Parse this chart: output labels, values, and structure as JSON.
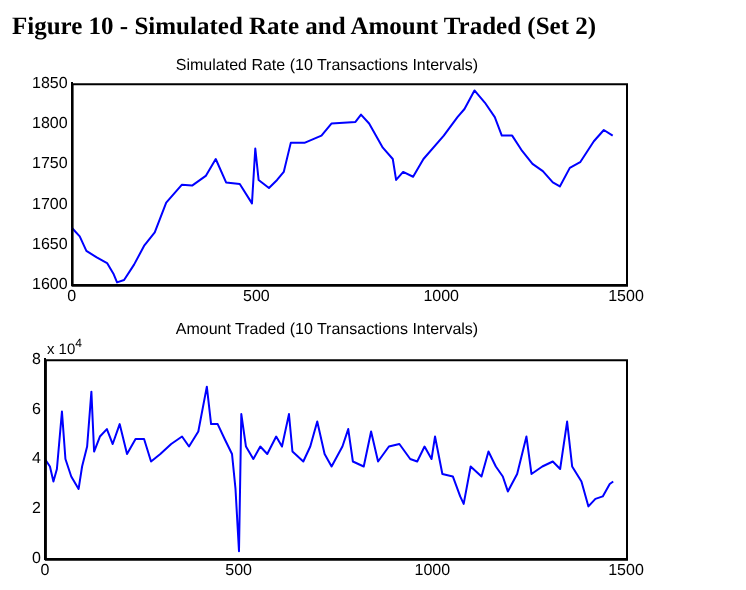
{
  "chart_data": [
    {
      "type": "line",
      "title": "Figure 10 - Simulated Rate and Amount Traded (Set 2)",
      "subtitle": "Simulated Rate (10 Transactions Intervals)",
      "x": [
        0,
        22,
        40,
        68,
        96,
        114,
        123,
        142,
        169,
        197,
        225,
        256,
        298,
        326,
        363,
        390,
        418,
        455,
        488,
        497,
        506,
        534,
        556,
        574,
        593,
        630,
        676,
        703,
        768,
        783,
        805,
        842,
        869,
        878,
        897,
        924,
        952,
        1007,
        1044,
        1063,
        1090,
        1118,
        1145,
        1164,
        1192,
        1219,
        1247,
        1275,
        1302,
        1321,
        1348,
        1376,
        1413,
        1440,
        1464
      ],
      "series": [
        {
          "color": "#0000ff",
          "values": [
            1671,
            1660,
            1642,
            1634,
            1627,
            1613,
            1603,
            1606,
            1625,
            1649,
            1665,
            1702,
            1724,
            1723,
            1735,
            1756,
            1727,
            1725,
            1701,
            1769,
            1730,
            1720,
            1730,
            1740,
            1776,
            1776,
            1785,
            1800,
            1802,
            1811,
            1800,
            1770,
            1756,
            1730,
            1740,
            1734,
            1756,
            1785,
            1808,
            1818,
            1841,
            1826,
            1808,
            1785,
            1785,
            1766,
            1750,
            1741,
            1727,
            1722,
            1745,
            1752,
            1778,
            1792,
            1785
          ]
        }
      ],
      "xlim": [
        0,
        1500
      ],
      "xticks": [
        0,
        500,
        1000,
        1500
      ],
      "ylim": [
        1600,
        1850
      ],
      "yticks": [
        1600,
        1650,
        1700,
        1750,
        1800,
        1850
      ],
      "grid": false,
      "legend": false,
      "marker": "none",
      "line_style": "solid"
    },
    {
      "type": "line",
      "title": "Amount Traded (10 Transactions Intervals)",
      "annotations": [
        "x 10$^{4}$"
      ],
      "x": [
        0,
        13,
        22,
        31,
        44,
        53,
        68,
        87,
        96,
        109,
        120,
        127,
        142,
        160,
        175,
        193,
        212,
        234,
        256,
        274,
        298,
        326,
        354,
        372,
        396,
        418,
        429,
        446,
        464,
        483,
        492,
        501,
        507,
        519,
        538,
        556,
        574,
        597,
        612,
        630,
        639,
        667,
        685,
        703,
        722,
        740,
        768,
        783,
        795,
        823,
        842,
        860,
        888,
        915,
        943,
        961,
        980,
        998,
        1007,
        1026,
        1053,
        1072,
        1081,
        1099,
        1127,
        1145,
        1164,
        1182,
        1195,
        1219,
        1243,
        1256,
        1284,
        1311,
        1330,
        1348,
        1361,
        1385,
        1403,
        1421,
        1440,
        1458,
        1467
      ],
      "series": [
        {
          "color": "#0000ff",
          "values": [
            4.0,
            3.7,
            3.1,
            3.6,
            5.9,
            4.0,
            3.3,
            2.8,
            3.7,
            4.5,
            6.7,
            4.3,
            4.9,
            5.2,
            4.6,
            5.4,
            4.2,
            4.8,
            4.8,
            3.9,
            4.2,
            4.6,
            4.9,
            4.5,
            5.1,
            6.9,
            5.4,
            5.4,
            4.8,
            4.2,
            2.8,
            0.3,
            5.8,
            4.5,
            4.0,
            4.5,
            4.2,
            4.9,
            4.5,
            5.8,
            4.3,
            3.9,
            4.5,
            5.5,
            4.2,
            3.7,
            4.5,
            5.2,
            3.9,
            3.7,
            5.1,
            3.9,
            4.5,
            4.6,
            4.0,
            3.9,
            4.5,
            4.0,
            4.9,
            3.4,
            3.3,
            2.5,
            2.2,
            3.7,
            3.3,
            4.3,
            3.7,
            3.3,
            2.7,
            3.4,
            4.9,
            3.4,
            3.7,
            3.9,
            3.6,
            5.5,
            3.7,
            3.1,
            2.1,
            2.4,
            2.5,
            3.0,
            3.1
          ]
        }
      ],
      "xlim": [
        0,
        1500
      ],
      "xticks": [
        0,
        500,
        1000,
        1500
      ],
      "ylim": [
        0,
        8
      ],
      "yticks": [
        0,
        2,
        4,
        6,
        8
      ],
      "grid": false,
      "legend": false,
      "marker": "none",
      "line_style": "solid"
    }
  ]
}
